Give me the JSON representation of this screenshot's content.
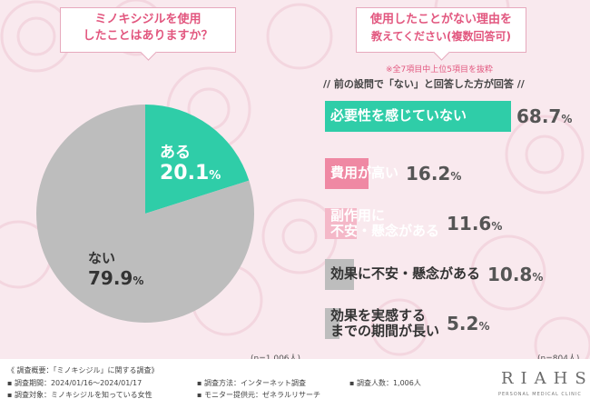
{
  "colors": {
    "teal": "#2fcda8",
    "pink": "#ef88a3",
    "light_pink": "#f4b8c8",
    "gray": "#bdbdbd",
    "text_pink": "#e2577f"
  },
  "left": {
    "question_line1": "ミノキシジルを使用",
    "question_line2": "したことはありますか？",
    "n_label": "(n=1,006人)"
  },
  "right": {
    "question_line1": "使用したことがない理由を",
    "question_line2": "教えてください(複数回答可)",
    "note": "※全7項目中上位5項目を抜粋",
    "subtitle": "//  前の設問で「ない」と回答した方が回答  //",
    "n_label": "(n=804人)"
  },
  "chart_data": [
    {
      "type": "pie",
      "categories": [
        "ある",
        "ない"
      ],
      "values": [
        20.1,
        79.9
      ],
      "unit": "%",
      "colors": [
        "#2fcda8",
        "#bdbdbd"
      ]
    },
    {
      "type": "bar",
      "orientation": "horizontal",
      "categories": [
        {
          "lines": [
            "必要性を感じていない"
          ],
          "value": 68.7,
          "color": "#2fcda8",
          "label_color": "#ffffff"
        },
        {
          "lines": [
            "費用が高い"
          ],
          "value": 16.2,
          "color": "#ef88a3",
          "label_color": "#ffffff"
        },
        {
          "lines": [
            "副作用に",
            "不安・懸念がある"
          ],
          "value": 11.6,
          "color": "#f4b8c8",
          "label_color": "#ffffff"
        },
        {
          "lines": [
            "効果に不安・懸念がある"
          ],
          "value": 10.8,
          "color": "#bdbdbd",
          "label_color": "#333333"
        },
        {
          "lines": [
            "効果を実感する",
            "までの期間が長い"
          ],
          "value": 5.2,
          "color": "#bdbdbd",
          "label_color": "#333333"
        }
      ],
      "unit": "%"
    }
  ],
  "footer": {
    "col1": [
      "《 調査概要：「ミノキシジル」に関する調査》",
      "▪ 調査期間：2024/01/16～2024/01/17",
      "▪ 調査対象：ミノキシジルを知っている女性"
    ],
    "col2": [
      "▪ 調査方法：インターネット調査",
      "▪ モニター提供元：ゼネラルリサーチ"
    ],
    "col3": [
      "▪ 調査人数：1,006人"
    ],
    "logo": "RIAHS",
    "logo_sub": "PERSONAL MEDICAL CLINIC"
  }
}
